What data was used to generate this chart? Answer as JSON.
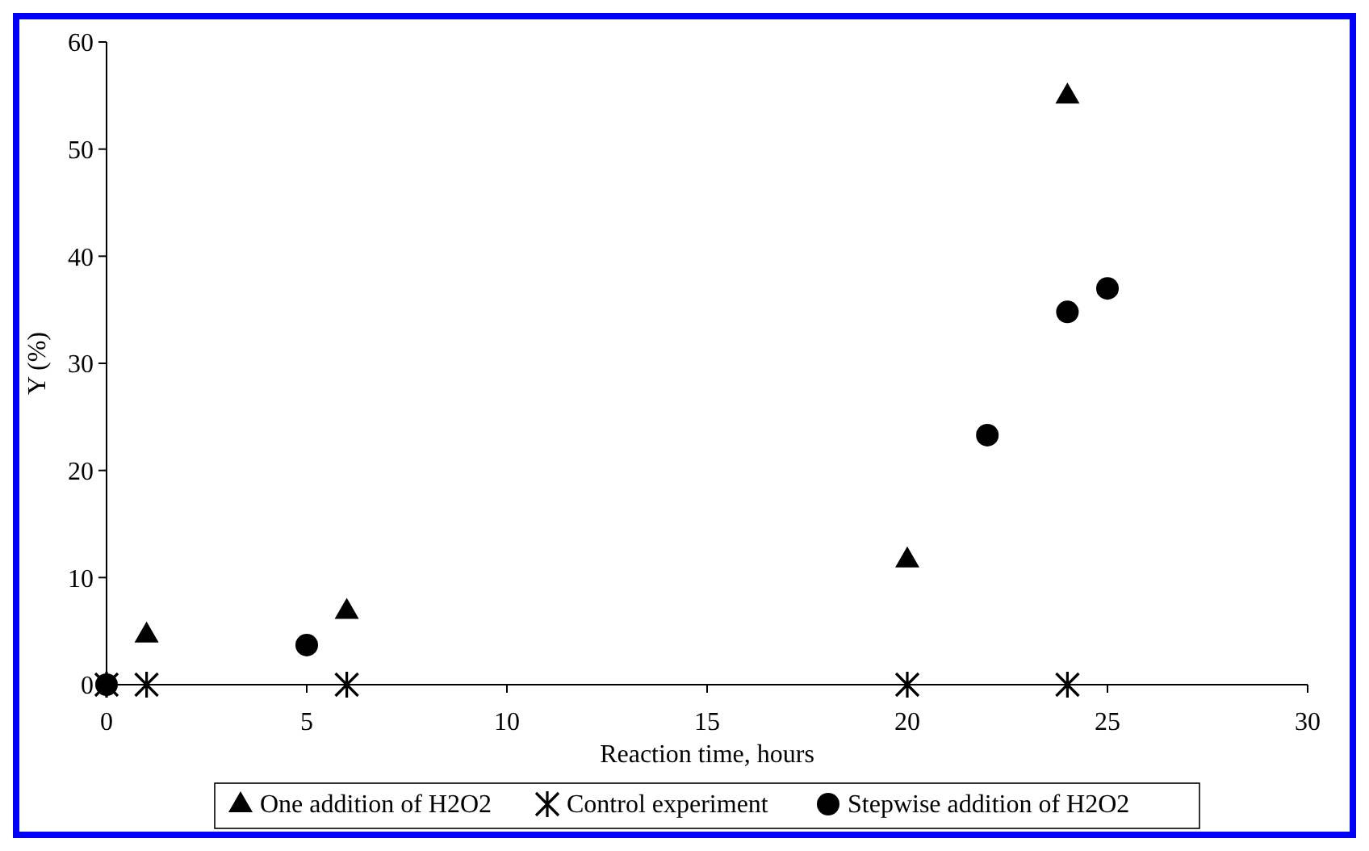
{
  "chart_data": {
    "type": "scatter",
    "xlabel": "Reaction time, hours",
    "ylabel": "Y (%)",
    "xlim": [
      0,
      30
    ],
    "xticks": [
      0,
      5,
      10,
      15,
      20,
      25,
      30
    ],
    "ylim": [
      0,
      60
    ],
    "yticks": [
      0,
      10,
      20,
      30,
      40,
      50,
      60
    ],
    "legend": "bottom",
    "grid": false,
    "series": [
      {
        "name": "One addition of H2O2",
        "color": "#000000",
        "marker": "triangle",
        "x": [
          1,
          6,
          20,
          24
        ],
        "values": [
          4.7,
          6.9,
          11.7,
          55
        ]
      },
      {
        "name": "Control experiment",
        "color": "#000000",
        "marker": "cross",
        "x": [
          0,
          1,
          6,
          20,
          24
        ],
        "values": [
          0,
          0,
          0,
          0,
          0
        ]
      },
      {
        "name": "Stepwise addition of H2O2",
        "color": "#000000",
        "marker": "circle",
        "x": [
          0,
          5,
          22,
          24,
          25
        ],
        "values": [
          0,
          3.7,
          23.3,
          34.8,
          37
        ]
      }
    ]
  }
}
